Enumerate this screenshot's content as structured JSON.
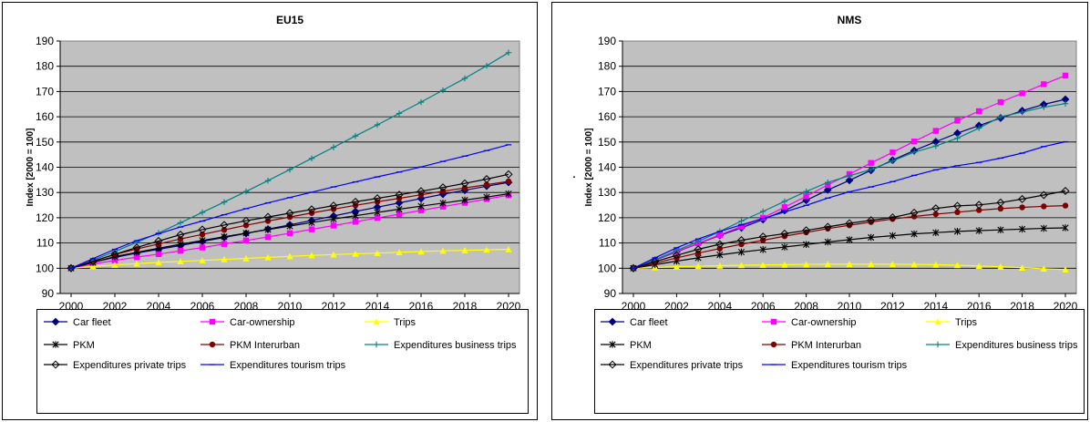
{
  "chart_data": [
    {
      "type": "line",
      "title": "EU15",
      "ylabel": "Index [2000 = 100]",
      "xlabel": "",
      "x": [
        2000,
        2001,
        2002,
        2003,
        2004,
        2005,
        2006,
        2007,
        2008,
        2009,
        2010,
        2011,
        2012,
        2013,
        2014,
        2015,
        2016,
        2017,
        2018,
        2019,
        2020
      ],
      "ylim": [
        90,
        190
      ],
      "yticks": [
        90,
        100,
        110,
        120,
        130,
        140,
        150,
        160,
        170,
        180,
        190
      ],
      "xticks": [
        "2000",
        "2002",
        "2004",
        "2006",
        "2008",
        "2010",
        "2012",
        "2014",
        "2016",
        "2018",
        "2020"
      ],
      "grid": "horizontal",
      "legend_position": "bottom",
      "series": [
        {
          "name": "Car fleet",
          "color": "#000080",
          "marker": "diamond",
          "values": [
            100,
            102.4,
            104.3,
            106.0,
            107.5,
            109.0,
            110.6,
            112.2,
            113.8,
            115.5,
            117.2,
            118.9,
            120.7,
            122.5,
            124.2,
            125.9,
            127.6,
            129.3,
            130.9,
            132.5,
            134.0
          ]
        },
        {
          "name": "Car-ownership",
          "color": "#ff00ff",
          "marker": "square",
          "values": [
            100,
            101.7,
            103.1,
            104.4,
            105.6,
            106.9,
            108.2,
            109.6,
            111.0,
            112.4,
            113.9,
            115.4,
            116.9,
            118.4,
            119.9,
            121.4,
            122.9,
            124.4,
            125.9,
            127.4,
            128.9
          ]
        },
        {
          "name": "Trips",
          "color": "#ffff00",
          "marker": "triangle",
          "values": [
            100,
            100.7,
            101.3,
            101.8,
            102.3,
            102.7,
            103.1,
            103.5,
            103.9,
            104.3,
            104.7,
            105.1,
            105.4,
            105.7,
            106.0,
            106.3,
            106.6,
            106.9,
            107.1,
            107.3,
            107.5
          ]
        },
        {
          "name": "PKM",
          "color": "#000000",
          "marker": "star",
          "values": [
            100,
            102.3,
            104.6,
            106.3,
            107.9,
            109.5,
            111.0,
            112.5,
            113.9,
            115.3,
            116.7,
            118.1,
            119.5,
            120.8,
            122.1,
            123.4,
            124.6,
            125.8,
            127.0,
            128.2,
            129.5
          ]
        },
        {
          "name": "PKM Interurban",
          "color": "#800000",
          "marker": "circle",
          "values": [
            100,
            102.8,
            105.4,
            107.6,
            109.6,
            111.6,
            113.4,
            115.2,
            117.0,
            118.7,
            120.3,
            121.9,
            123.4,
            124.9,
            126.3,
            127.7,
            129.1,
            130.5,
            131.8,
            133.1,
            134.4
          ]
        },
        {
          "name": "Expenditures business trips",
          "color": "#008080",
          "marker": "plus",
          "values": [
            100,
            103.2,
            106.6,
            110.2,
            114.0,
            118.0,
            122.1,
            126.2,
            130.4,
            134.7,
            139.1,
            143.5,
            147.9,
            152.4,
            156.8,
            161.3,
            165.8,
            170.5,
            175.2,
            180.2,
            185.4
          ]
        },
        {
          "name": "Expenditures private trips",
          "color": "#000000",
          "marker": "diamond-open",
          "values": [
            100,
            102.7,
            105.5,
            108.2,
            110.8,
            113.3,
            115.3,
            117.1,
            118.8,
            120.3,
            121.8,
            123.3,
            124.8,
            126.3,
            127.7,
            129.1,
            130.5,
            132.0,
            133.6,
            135.3,
            137.2
          ]
        },
        {
          "name": "Expenditures tourism trips",
          "color": "#0000ff",
          "marker": "dash",
          "values": [
            100,
            103.8,
            107.5,
            110.9,
            113.7,
            116.3,
            118.7,
            121.2,
            123.6,
            125.9,
            128.0,
            130.1,
            132.2,
            134.2,
            136.2,
            138.1,
            140.1,
            142.3,
            144.4,
            146.6,
            148.9
          ]
        }
      ]
    },
    {
      "type": "line",
      "title": "NMS",
      "ylabel": "Index [2000 = 100]",
      "xlabel": "",
      "side_mark": ".",
      "x": [
        2000,
        2001,
        2002,
        2003,
        2004,
        2005,
        2006,
        2007,
        2008,
        2009,
        2010,
        2011,
        2012,
        2013,
        2014,
        2015,
        2016,
        2017,
        2018,
        2019,
        2020
      ],
      "ylim": [
        90,
        190
      ],
      "yticks": [
        90,
        100,
        110,
        120,
        130,
        140,
        150,
        160,
        170,
        180,
        190
      ],
      "xticks": [
        "2000",
        "2002",
        "2004",
        "2006",
        "2008",
        "2010",
        "2012",
        "2014",
        "2016",
        "2018",
        "2020"
      ],
      "grid": "horizontal",
      "legend_position": "bottom",
      "series": [
        {
          "name": "Car fleet",
          "color": "#000080",
          "marker": "diamond",
          "values": [
            100,
            103.2,
            106.5,
            109.8,
            113.0,
            116.0,
            119.3,
            122.9,
            126.9,
            131.0,
            134.8,
            138.8,
            142.8,
            146.6,
            150.1,
            153.5,
            156.5,
            159.5,
            162.4,
            164.9,
            166.9
          ]
        },
        {
          "name": "Car-ownership",
          "color": "#ff00ff",
          "marker": "square",
          "values": [
            100,
            103.3,
            106.6,
            109.9,
            113.2,
            116.5,
            120.0,
            124.2,
            128.5,
            133.0,
            137.3,
            141.7,
            145.9,
            150.2,
            154.4,
            158.5,
            162.2,
            165.8,
            169.3,
            172.9,
            176.3
          ]
        },
        {
          "name": "Trips",
          "color": "#ffff00",
          "marker": "triangle",
          "values": [
            100,
            100.3,
            100.6,
            100.8,
            101.0,
            101.2,
            101.3,
            101.4,
            101.5,
            101.6,
            101.6,
            101.6,
            101.6,
            101.5,
            101.4,
            101.2,
            100.9,
            100.6,
            100.2,
            99.8,
            99.5
          ]
        },
        {
          "name": "PKM",
          "color": "#000000",
          "marker": "star",
          "values": [
            100,
            101.4,
            102.8,
            104.1,
            105.3,
            106.4,
            107.4,
            108.4,
            109.4,
            110.4,
            111.3,
            112.2,
            112.9,
            113.6,
            114.1,
            114.6,
            114.9,
            115.2,
            115.5,
            115.8,
            116.0
          ]
        },
        {
          "name": "PKM Interurban",
          "color": "#800000",
          "marker": "circle",
          "values": [
            100,
            102.0,
            104.1,
            106.0,
            107.8,
            109.5,
            111.1,
            112.7,
            114.2,
            115.7,
            117.0,
            118.3,
            119.5,
            120.5,
            121.4,
            122.2,
            123.0,
            123.6,
            124.1,
            124.5,
            124.8
          ]
        },
        {
          "name": "Expenditures business trips",
          "color": "#008080",
          "marker": "plus",
          "values": [
            100,
            103.4,
            107.0,
            110.6,
            114.6,
            118.7,
            122.5,
            126.5,
            130.4,
            134.0,
            136.6,
            139.1,
            142.5,
            146.0,
            148.4,
            151.5,
            155.5,
            160.0,
            161.8,
            163.8,
            165.2
          ]
        },
        {
          "name": "Expenditures private trips",
          "color": "#000000",
          "marker": "diamond-open",
          "values": [
            100,
            102.6,
            105.1,
            107.5,
            109.5,
            111.1,
            112.5,
            113.7,
            115.0,
            116.4,
            117.8,
            119.0,
            120.1,
            122.0,
            123.7,
            124.7,
            125.1,
            126.0,
            127.4,
            129.0,
            130.6
          ]
        },
        {
          "name": "Expenditures tourism trips",
          "color": "#0000ff",
          "marker": "dash",
          "values": [
            100,
            104.1,
            108.1,
            111.6,
            114.6,
            117.2,
            119.7,
            122.3,
            124.9,
            127.8,
            130.3,
            132.2,
            134.3,
            136.8,
            139.0,
            140.6,
            141.9,
            143.6,
            145.6,
            148.2,
            150.1
          ]
        }
      ]
    }
  ]
}
